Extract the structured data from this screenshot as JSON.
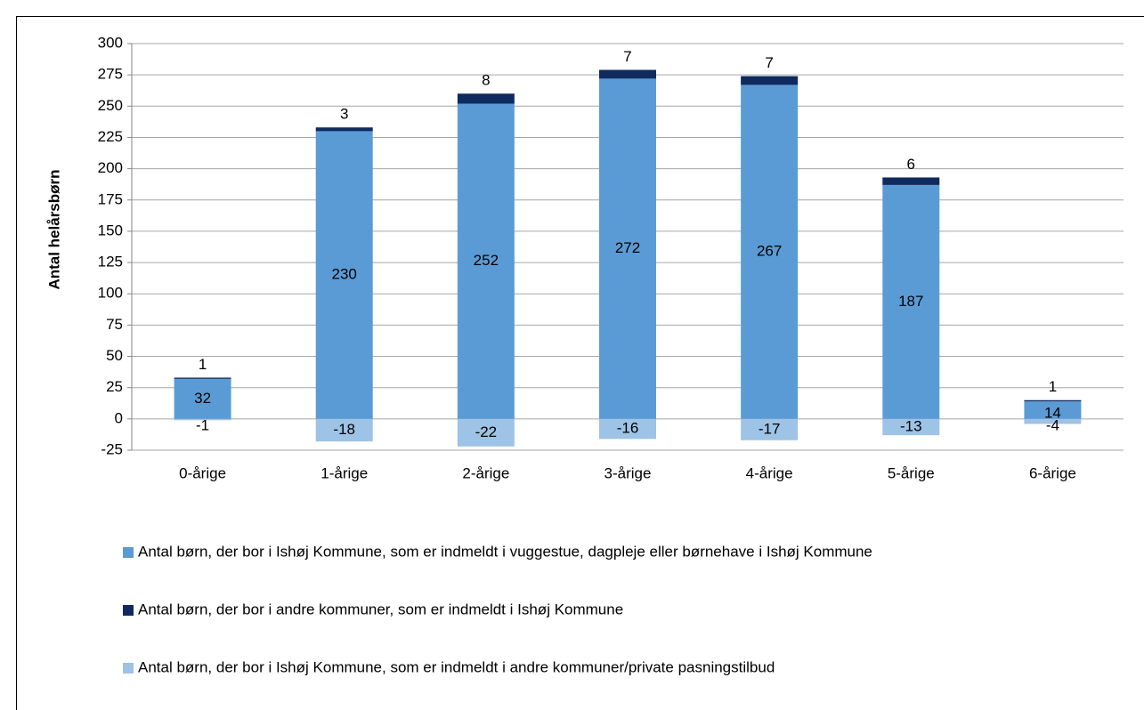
{
  "chart_data": {
    "type": "stacked_bar",
    "y_label": "Antal helårsbørn",
    "categories": [
      "0-årige",
      "1-årige",
      "2-årige",
      "3-årige",
      "4-årige",
      "5-årige",
      "6-årige"
    ],
    "series": [
      {
        "name": "Antal børn, der bor i Ishøj Kommune, som er indmeldt i vuggestue, dagpleje eller børnehave i Ishøj Kommune",
        "color": "#5b9bd5",
        "values": [
          32,
          230,
          252,
          272,
          267,
          187,
          14
        ]
      },
      {
        "name": "Antal børn, der bor i andre kommuner, som er indmeldt i Ishøj Kommune",
        "color": "#0f2a5e",
        "values": [
          1,
          3,
          8,
          7,
          7,
          6,
          1
        ]
      },
      {
        "name": "Antal børn, der bor i Ishøj Kommune, som er indmeldt i andre kommuner/private pasningstilbud",
        "color": "#9dc3e6",
        "values": [
          -1,
          -18,
          -22,
          -16,
          -17,
          -13,
          -4
        ]
      }
    ],
    "ylim": [
      -25,
      300
    ],
    "yticks": [
      -25,
      0,
      25,
      50,
      75,
      100,
      125,
      150,
      175,
      200,
      225,
      250,
      275,
      300
    ],
    "grid": true,
    "legend": "bottom"
  }
}
